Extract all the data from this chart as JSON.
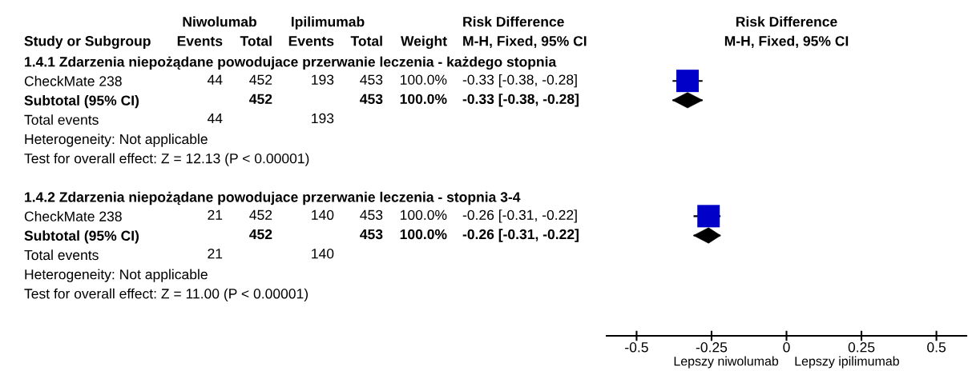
{
  "chart_data": {
    "type": "scatter",
    "orientation": "horizontal",
    "title": "Risk Difference",
    "subtitle": "M-H, Fixed, 95% CI",
    "ylabel": "Study or Subgroup",
    "categories": [
      "1.4.1 Zdarzenia niepożądane powodujace przerwanie leczenia - każdego stopnia",
      "CheckMate 238",
      "Subtotal (95% CI)",
      "Total events",
      "Heterogeneity: Not applicable",
      "Test for overall effect: Z = 12.13 (P < 0.00001)",
      null,
      "1.4.2 Zdarzenia niepożądane powodujace przerwanie leczenia - stopnia 3-4",
      "CheckMate 238",
      "Subtotal (95% CI)",
      "Total events",
      "Heterogeneity: Not applicable",
      "Test for overall effect: Z = 11.00 (P < 0.00001)"
    ],
    "series": [
      {
        "marker": "square",
        "color": "#0000c8",
        "values": [
          null,
          -0.33,
          null,
          null,
          null,
          null,
          null,
          null,
          -0.26,
          null,
          null,
          null,
          null
        ],
        "errors": [
          null,
          [
            -0.38,
            -0.28
          ],
          null,
          null,
          null,
          null,
          null,
          null,
          [
            -0.31,
            -0.22
          ],
          null,
          null,
          null,
          null
        ],
        "value_labels": [
          null,
          "-0.33 [-0.38, -0.28]",
          null,
          null,
          null,
          null,
          null,
          null,
          "-0.26 [-0.31, -0.22]",
          null,
          null,
          null,
          null
        ]
      },
      {
        "marker": "diamond",
        "color": "#000000",
        "values": [
          null,
          null,
          -0.33,
          null,
          null,
          null,
          null,
          null,
          null,
          -0.26,
          null,
          null,
          null
        ],
        "errors": [
          null,
          null,
          [
            -0.38,
            -0.28
          ],
          null,
          null,
          null,
          null,
          null,
          null,
          [
            -0.31,
            -0.22
          ],
          null,
          null,
          null
        ]
      }
    ],
    "xlim": [
      -0.6,
      0.6
    ],
    "xticks": [
      -0.5,
      -0.25,
      0,
      0.25,
      0.5
    ],
    "annotations": [
      "Niwolumab",
      "Ipilimumab",
      "Risk Difference",
      "Events",
      "Total",
      "Events",
      "Total",
      "Weight",
      "M-H, Fixed, 95% CI",
      "44",
      "452",
      "193",
      "453",
      "100.0%",
      "452",
      "453",
      "100.0%",
      "-0.33 [-0.38, -0.28]",
      "44",
      "193",
      "21",
      "452",
      "140",
      "453",
      "100.0%",
      "452",
      "453",
      "100.0%",
      "-0.26 [-0.31, -0.22]",
      "21",
      "140",
      "Lepszy niwolumab",
      "Lepszy ipilimumab"
    ]
  }
}
